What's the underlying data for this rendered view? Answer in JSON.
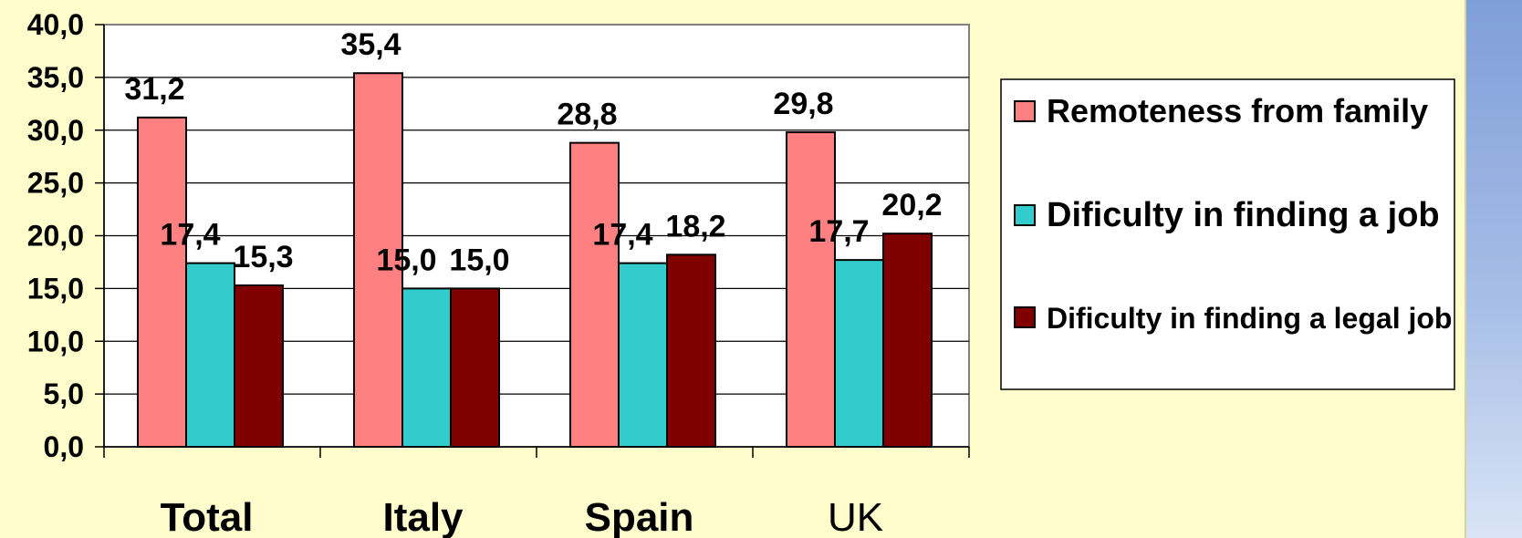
{
  "colors": {
    "background": "#fffdcc",
    "plot_area": "#ffffff",
    "remoteness": "#ff8080",
    "job": "#33cccc",
    "legal_job": "#800000"
  },
  "chart_data": {
    "type": "bar",
    "categories": [
      "Total",
      "Italy",
      "Spain",
      "UK"
    ],
    "category_bold": [
      true,
      true,
      true,
      false
    ],
    "series": [
      {
        "name": "Remoteness from family",
        "values": [
          31.2,
          35.4,
          28.8,
          29.8
        ],
        "labels": [
          "31,2",
          "35,4",
          "28,8",
          "29,8"
        ],
        "color": "#ff8080"
      },
      {
        "name": "Dificulty in finding a job",
        "values": [
          17.4,
          15.0,
          17.4,
          17.7
        ],
        "labels": [
          "17,4",
          "15,0",
          "17,4",
          "17,7"
        ],
        "color": "#33cccc"
      },
      {
        "name": "Dificulty in finding a legal job",
        "values": [
          15.3,
          15.0,
          18.2,
          20.2
        ],
        "labels": [
          "15,3",
          "15,0",
          "18,2",
          "20,2"
        ],
        "color": "#800000"
      }
    ],
    "ylim": [
      0,
      40
    ],
    "yticks": [
      0,
      5,
      10,
      15,
      20,
      25,
      30,
      35,
      40
    ],
    "ytick_labels": [
      "0,0",
      "5,0",
      "10,0",
      "15,0",
      "20,0",
      "25,0",
      "30,0",
      "35,0",
      "40,0"
    ],
    "grid": true,
    "legend_position": "right"
  }
}
